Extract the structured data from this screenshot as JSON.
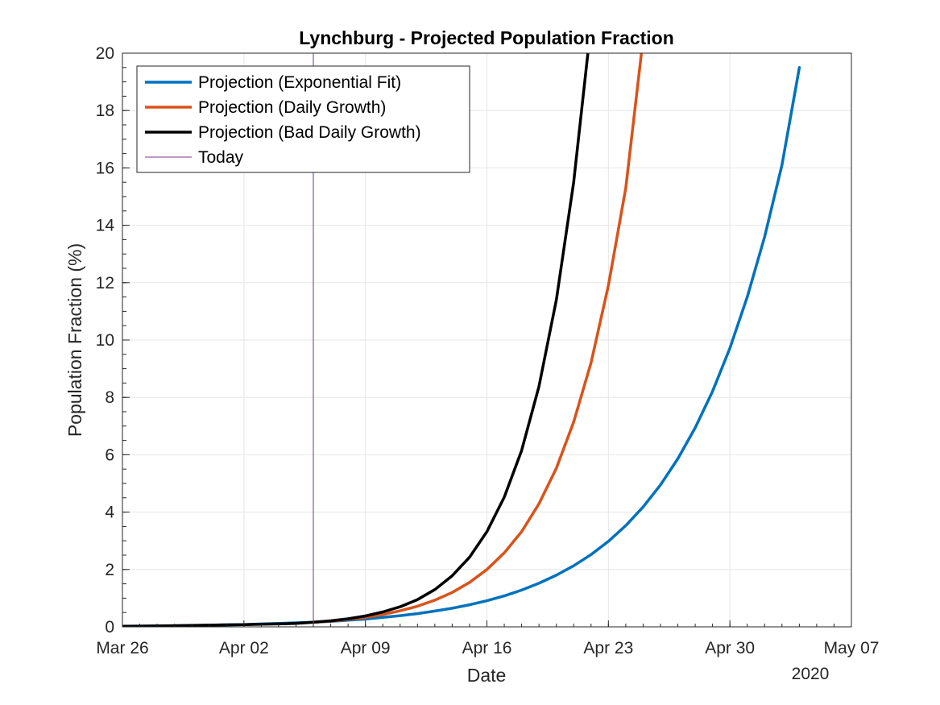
{
  "chart_data": {
    "type": "line",
    "title": "Lynchburg - Projected Population Fraction",
    "xlabel": "Date",
    "ylabel": "Population Fraction (%)",
    "x_year_label": "2020",
    "xlim": [
      "2020-03-26",
      "2020-05-07"
    ],
    "ylim": [
      0,
      20
    ],
    "grid": true,
    "legend_position": "top-left",
    "x_ticks": [
      {
        "date": "2020-03-26",
        "label": "Mar 26"
      },
      {
        "date": "2020-04-02",
        "label": "Apr 02"
      },
      {
        "date": "2020-04-09",
        "label": "Apr 09"
      },
      {
        "date": "2020-04-16",
        "label": "Apr 16"
      },
      {
        "date": "2020-04-23",
        "label": "Apr 23"
      },
      {
        "date": "2020-04-30",
        "label": "Apr 30"
      },
      {
        "date": "2020-05-07",
        "label": "May 07"
      }
    ],
    "y_ticks": [
      0,
      2,
      4,
      6,
      8,
      10,
      12,
      14,
      16,
      18,
      20
    ],
    "today": "2020-04-06",
    "series": [
      {
        "name": "Projection (Exponential Fit)",
        "color": "#0072BD",
        "x": [
          "2020-03-26",
          "2020-03-27",
          "2020-03-28",
          "2020-03-29",
          "2020-03-30",
          "2020-03-31",
          "2020-04-01",
          "2020-04-02",
          "2020-04-03",
          "2020-04-04",
          "2020-04-05",
          "2020-04-06",
          "2020-04-07",
          "2020-04-08",
          "2020-04-09",
          "2020-04-10",
          "2020-04-11",
          "2020-04-12",
          "2020-04-13",
          "2020-04-14",
          "2020-04-15",
          "2020-04-16",
          "2020-04-17",
          "2020-04-18",
          "2020-04-19",
          "2020-04-20",
          "2020-04-21",
          "2020-04-22",
          "2020-04-23",
          "2020-04-24",
          "2020-04-25",
          "2020-04-26",
          "2020-04-27",
          "2020-04-28",
          "2020-04-29",
          "2020-04-30",
          "2020-05-01",
          "2020-05-02",
          "2020-05-03",
          "2020-05-04"
        ],
        "y": [
          0.02,
          0.025,
          0.03,
          0.04,
          0.05,
          0.06,
          0.07,
          0.08,
          0.1,
          0.12,
          0.14,
          0.16,
          0.19,
          0.23,
          0.27,
          0.33,
          0.39,
          0.46,
          0.55,
          0.65,
          0.77,
          0.91,
          1.08,
          1.28,
          1.52,
          1.8,
          2.13,
          2.52,
          2.98,
          3.53,
          4.18,
          4.95,
          5.86,
          6.94,
          8.21,
          9.72,
          11.5,
          13.6,
          16.1,
          19.5
        ]
      },
      {
        "name": "Projection (Daily Growth)",
        "color": "#D95319",
        "x": [
          "2020-04-06",
          "2020-04-07",
          "2020-04-08",
          "2020-04-09",
          "2020-04-10",
          "2020-04-11",
          "2020-04-12",
          "2020-04-13",
          "2020-04-14",
          "2020-04-15",
          "2020-04-16",
          "2020-04-17",
          "2020-04-18",
          "2020-04-19",
          "2020-04-20",
          "2020-04-21",
          "2020-04-22",
          "2020-04-23",
          "2020-04-24",
          "2020-04-25"
        ],
        "y": [
          0.16,
          0.2,
          0.26,
          0.33,
          0.43,
          0.56,
          0.72,
          0.93,
          1.2,
          1.55,
          2.0,
          2.58,
          3.32,
          4.29,
          5.53,
          7.14,
          9.21,
          11.9,
          15.3,
          20.5
        ]
      },
      {
        "name": "Projection (Bad Daily Growth)",
        "color": "#000000",
        "x": [
          "2020-03-26",
          "2020-03-27",
          "2020-03-28",
          "2020-03-29",
          "2020-03-30",
          "2020-03-31",
          "2020-04-01",
          "2020-04-02",
          "2020-04-03",
          "2020-04-04",
          "2020-04-05",
          "2020-04-06",
          "2020-04-07",
          "2020-04-08",
          "2020-04-09",
          "2020-04-10",
          "2020-04-11",
          "2020-04-12",
          "2020-04-13",
          "2020-04-14",
          "2020-04-15",
          "2020-04-16",
          "2020-04-17",
          "2020-04-18",
          "2020-04-19",
          "2020-04-20",
          "2020-04-21",
          "2020-04-22"
        ],
        "y": [
          0.02,
          0.025,
          0.03,
          0.04,
          0.05,
          0.06,
          0.07,
          0.08,
          0.09,
          0.1,
          0.12,
          0.16,
          0.21,
          0.28,
          0.38,
          0.52,
          0.7,
          0.95,
          1.3,
          1.78,
          2.43,
          3.32,
          4.52,
          6.15,
          8.38,
          11.4,
          15.5,
          21.0
        ]
      }
    ],
    "legend": [
      {
        "label": "Projection (Exponential Fit)",
        "color": "#0072BD",
        "style": "thick"
      },
      {
        "label": "Projection (Daily Growth)",
        "color": "#D95319",
        "style": "thick"
      },
      {
        "label": "Projection (Bad Daily Growth)",
        "color": "#000000",
        "style": "thick"
      },
      {
        "label": "Today",
        "color": "#7E2F8E",
        "style": "thin"
      }
    ]
  }
}
